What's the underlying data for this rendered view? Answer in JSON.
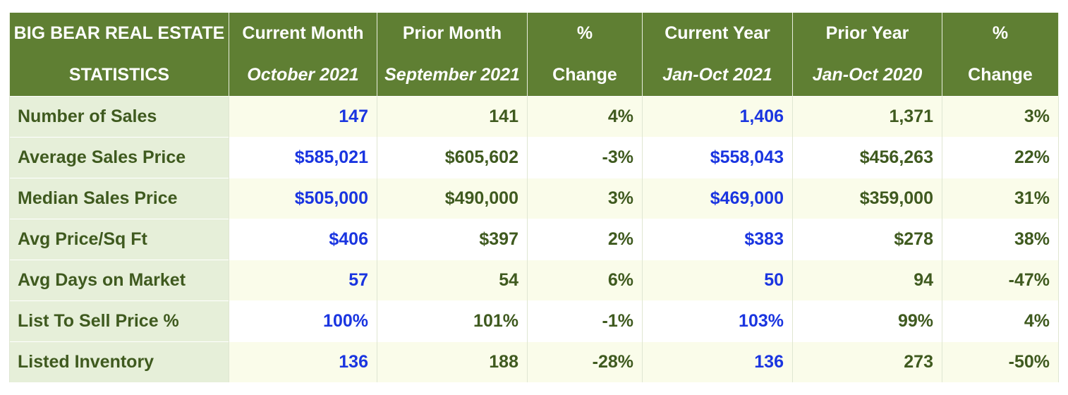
{
  "table": {
    "title_line1": "BIG BEAR REAL ESTATE",
    "title_line2": "STATISTICS",
    "columns": [
      {
        "top": "Current Month",
        "bottom": "October 2021"
      },
      {
        "top": "Prior Month",
        "bottom": "September 2021"
      },
      {
        "top": "%",
        "bottom": "Change"
      },
      {
        "top": "Current Year",
        "bottom": "Jan-Oct 2021"
      },
      {
        "top": "Prior Year",
        "bottom": "Jan-Oct 2020"
      },
      {
        "top": "%",
        "bottom": "Change"
      }
    ],
    "rows": [
      {
        "label": "Number of Sales",
        "values": [
          "147",
          "141",
          "4%",
          "1,406",
          "1,371",
          "3%"
        ]
      },
      {
        "label": "Average Sales Price",
        "values": [
          "$585,021",
          "$605,602",
          "-3%",
          "$558,043",
          "$456,263",
          "22%"
        ]
      },
      {
        "label": "Median Sales Price",
        "values": [
          "$505,000",
          "$490,000",
          "3%",
          "$469,000",
          "$359,000",
          "31%"
        ]
      },
      {
        "label": "Avg Price/Sq Ft",
        "values": [
          "$406",
          "$397",
          "2%",
          "$383",
          "$278",
          "38%"
        ]
      },
      {
        "label": "Avg Days on Market",
        "values": [
          "57",
          "54",
          "6%",
          "50",
          "94",
          "-47%"
        ]
      },
      {
        "label": "List To Sell Price %",
        "values": [
          "100%",
          "101%",
          "-1%",
          "103%",
          "99%",
          "4%"
        ]
      },
      {
        "label": "Listed Inventory",
        "values": [
          "136",
          "188",
          "-28%",
          "136",
          "273",
          "-50%"
        ]
      }
    ]
  },
  "colors": {
    "header_bg": "#5f7f33",
    "label_text": "#3f5a1f",
    "highlight_value": "#1a35e0",
    "label_bg": "#e6efd9",
    "row_alt_bg": "#fafcea"
  }
}
